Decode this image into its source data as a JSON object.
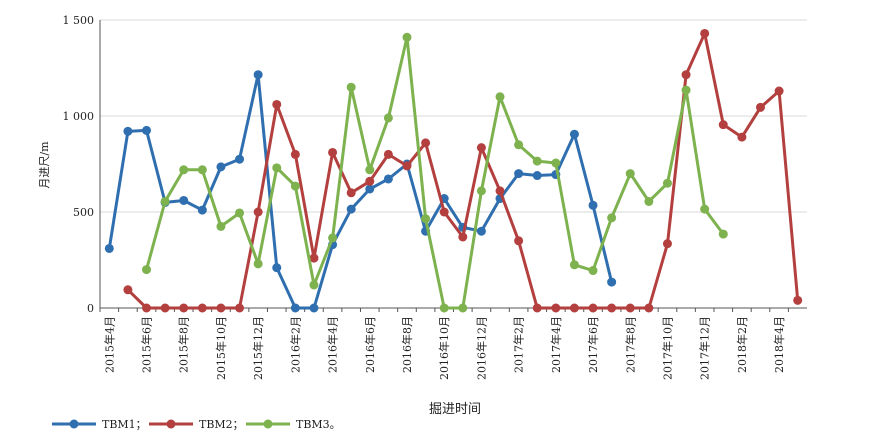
{
  "chart_data": {
    "type": "line",
    "y_label": "月进尺/m",
    "x_label": "掘进时间",
    "categories": [
      "2015年4月",
      null,
      "2015年6月",
      null,
      "2015年8月",
      null,
      "2015年10月",
      null,
      "2015年12月",
      null,
      "2016年2月",
      null,
      "2016年4月",
      null,
      "2016年6月",
      null,
      "2016年8月",
      null,
      "2016年10月",
      null,
      "2016年12月",
      null,
      "2017年2月",
      null,
      "2017年4月",
      null,
      "2017年6月",
      null,
      "2017年8月",
      null,
      "2017年10月",
      null,
      "2017年12月",
      null,
      "2018年2月",
      null,
      "2018年4月",
      null
    ],
    "series": [
      {
        "name": "TBM1；",
        "color": "#2f6fb0",
        "values": [
          310,
          920,
          925,
          550,
          560,
          510,
          735,
          775,
          1215,
          210,
          0,
          0,
          330,
          515,
          620,
          672,
          750,
          400,
          570,
          420,
          400,
          570,
          700,
          690,
          695,
          905,
          535,
          135,
          null,
          null,
          null,
          null,
          null,
          null,
          null,
          null,
          null,
          null
        ]
      },
      {
        "name": "TBM2；",
        "color": "#b3403f",
        "values": [
          null,
          95,
          0,
          0,
          0,
          0,
          0,
          0,
          500,
          1060,
          800,
          260,
          810,
          600,
          660,
          800,
          740,
          860,
          500,
          370,
          835,
          610,
          350,
          0,
          0,
          0,
          0,
          0,
          0,
          0,
          335,
          1215,
          1430,
          955,
          890,
          1045,
          1130,
          40
        ]
      },
      {
        "name": "TBM3。",
        "color": "#7db24f",
        "values": [
          null,
          null,
          200,
          555,
          720,
          720,
          425,
          495,
          230,
          730,
          635,
          120,
          365,
          1150,
          720,
          990,
          1410,
          465,
          0,
          0,
          610,
          1100,
          850,
          765,
          755,
          225,
          195,
          470,
          700,
          555,
          650,
          1135,
          515,
          385,
          null,
          null,
          null,
          null
        ]
      }
    ],
    "ylim": [
      0,
      1500
    ],
    "yticks": [
      0,
      500,
      {
        "value": 1000,
        "label": "1 000"
      },
      {
        "value": 1500,
        "label": "1 500"
      }
    ],
    "grid": true,
    "legend": "bottom-left"
  }
}
